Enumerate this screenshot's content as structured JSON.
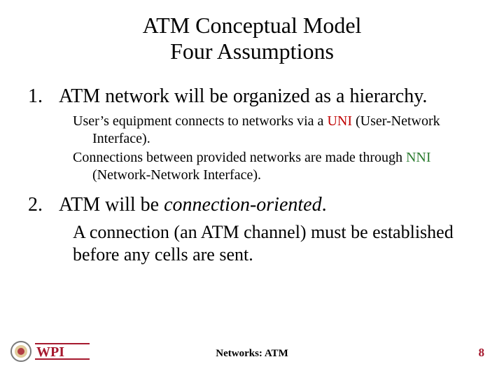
{
  "title": {
    "line1": "ATM Conceptual Model",
    "line2": "Four Assumptions"
  },
  "items": [
    {
      "num": "1.",
      "head": "ATM network will be organized as a hierarchy.",
      "sub_style": "small",
      "sub_lines": [
        {
          "segments": [
            {
              "t": "User’s equipment connects to networks via a "
            },
            {
              "t": "UNI",
              "cls": "uni"
            },
            {
              "t": " (User-Network Interface)."
            }
          ]
        },
        {
          "segments": [
            {
              "t": "Connections between provided networks are made through "
            },
            {
              "t": "NNI",
              "cls": "nni"
            },
            {
              "t": " (Network-Network Interface)."
            }
          ]
        }
      ]
    },
    {
      "num": "2.",
      "head_segments": [
        {
          "t": "ATM will be "
        },
        {
          "t": "connection-oriented",
          "cls": "italic"
        },
        {
          "t": "."
        }
      ],
      "sub_style": "large",
      "sub_lines": [
        {
          "segments": [
            {
              "t": "A connection (an ATM channel) must be established before any cells are sent."
            }
          ]
        }
      ]
    }
  ],
  "footer": {
    "center": "Networks: ATM",
    "page": "8",
    "logo_text": "WPI",
    "colors": {
      "brand": "#a6192e",
      "seal_outer": "#7a7a7a",
      "seal_inner": "#c9a24a"
    }
  }
}
